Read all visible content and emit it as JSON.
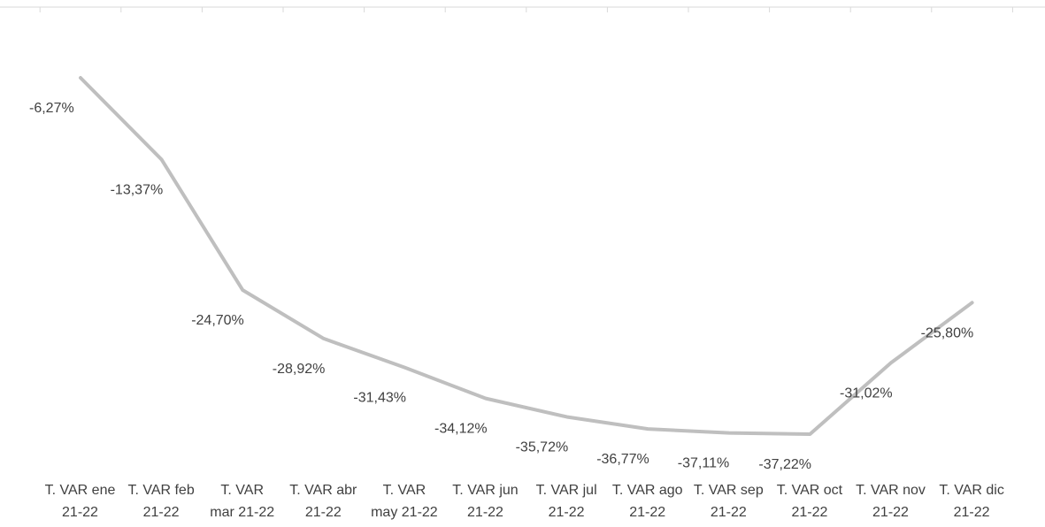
{
  "chart_data": {
    "type": "line",
    "title": "",
    "xlabel": "",
    "ylabel": "",
    "categories": [
      [
        "T. VAR ene",
        "21-22"
      ],
      [
        "T. VAR feb",
        "21-22"
      ],
      [
        "T. VAR",
        "mar 21-22"
      ],
      [
        "T. VAR abr",
        "21-22"
      ],
      [
        "T. VAR",
        "may 21-22"
      ],
      [
        "T. VAR jun",
        "21-22"
      ],
      [
        "T. VAR jul",
        "21-22"
      ],
      [
        "T. VAR ago",
        "21-22"
      ],
      [
        "T. VAR sep",
        "21-22"
      ],
      [
        "T. VAR oct",
        "21-22"
      ],
      [
        "T. VAR nov",
        "21-22"
      ],
      [
        "T. VAR dic",
        "21-22"
      ]
    ],
    "series": [
      {
        "values": [
          -6.27,
          -13.37,
          -24.7,
          -28.92,
          -31.43,
          -34.12,
          -35.72,
          -36.77,
          -37.11,
          -37.22,
          -31.02,
          -25.8
        ],
        "labels": [
          "-6,27%",
          "-13,37%",
          "-24,70%",
          "-28,92%",
          "-31,43%",
          "-34,12%",
          "-35,72%",
          "-36,77%",
          "-37,11%",
          "-37,22%",
          "-31,02%",
          "-25,80%"
        ],
        "color": "#bfbfbf"
      }
    ],
    "ylim": [
      -37.22,
      -6.27
    ],
    "grid": false,
    "legend": "none"
  }
}
